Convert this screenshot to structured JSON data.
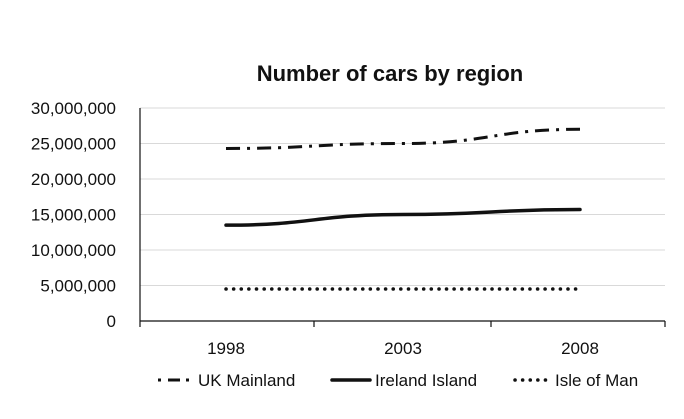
{
  "chart_data": {
    "type": "line",
    "title": "Number of cars by region",
    "xlabel": "",
    "ylabel": "",
    "x": [
      "1998",
      "2003",
      "2008"
    ],
    "ylim": [
      0,
      30000000
    ],
    "yticks": [
      0,
      5000000,
      10000000,
      15000000,
      20000000,
      25000000,
      30000000
    ],
    "ytick_labels": [
      "0",
      "5,000,000",
      "10,000,000",
      "15,000,000",
      "20,000,000",
      "25,000,000",
      "30,000,000"
    ],
    "grid": true,
    "legend_position": "bottom",
    "series": [
      {
        "name": "UK Mainland",
        "values": [
          24300000,
          25000000,
          27000000
        ],
        "color": "#111111",
        "style": "dash-dot"
      },
      {
        "name": "Ireland Island",
        "values": [
          13500000,
          15000000,
          15700000
        ],
        "color": "#111111",
        "style": "solid"
      },
      {
        "name": "Isle of Man",
        "values": [
          4500000,
          4500000,
          4500000
        ],
        "color": "#111111",
        "style": "dotted"
      }
    ]
  }
}
